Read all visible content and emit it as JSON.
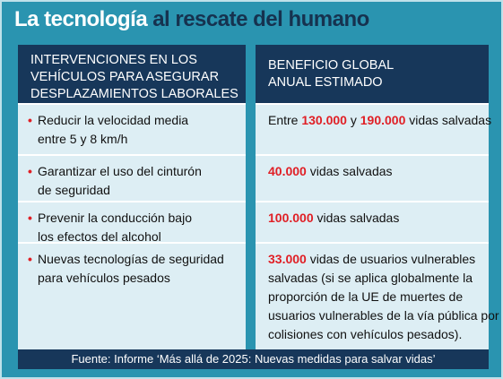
{
  "header": {
    "title": [
      {
        "text": "La tecnología",
        "color": "#ffffff"
      },
      {
        "text": "al rescate del humano",
        "color": "#16324f"
      }
    ]
  },
  "table": {
    "columns": [
      [
        "INTERVENCIONES EN LOS",
        "VEHÍCULOS PARA ASEGURAR",
        "DESPLAZAMIENTOS LABORALES"
      ],
      [
        "BENEFICIO GLOBAL",
        "ANUAL ESTIMADO"
      ]
    ],
    "rows": [
      {
        "intervention": [
          "Reducir la velocidad media",
          "entre 5 y 8 km/h"
        ],
        "benefit": [
          [
            {
              "text": "Entre "
            },
            {
              "text": "130.000",
              "color": "#e01f25"
            },
            {
              "text": " y "
            },
            {
              "text": "190.000",
              "color": "#e01f25"
            },
            {
              "text": " vidas salvadas"
            }
          ]
        ]
      },
      {
        "intervention": [
          "Garantizar el uso del cinturón",
          "de seguridad"
        ],
        "benefit": [
          [
            {
              "text": "40.000",
              "color": "#e01f25"
            },
            {
              "text": " vidas salvadas"
            }
          ]
        ]
      },
      {
        "intervention": [
          "Prevenir la conducción bajo",
          "los efectos del alcohol"
        ],
        "benefit": [
          [
            {
              "text": "100.000",
              "color": "#e01f25"
            },
            {
              "text": " vidas salvadas"
            }
          ]
        ]
      },
      {
        "intervention": [
          "Nuevas tecnologías de seguridad",
          "para vehículos pesados"
        ],
        "benefit": [
          [
            {
              "text": "33.000",
              "color": "#e01f25"
            },
            {
              "text": " vidas de usuarios vulnerables"
            }
          ],
          [
            {
              "text": "salvadas (si se aplica globalmente la"
            }
          ],
          [
            {
              "text": "proporción de la UE de muertes de"
            }
          ],
          [
            {
              "text": "usuarios vulnerables de la vía pública por"
            }
          ],
          [
            {
              "text": "colisiones con vehículos pesados)."
            }
          ]
        ]
      }
    ]
  },
  "footer": {
    "source": "Fuente: Informe ‘Más allá de 2025: Nuevas medidas para salvar vidas’"
  }
}
